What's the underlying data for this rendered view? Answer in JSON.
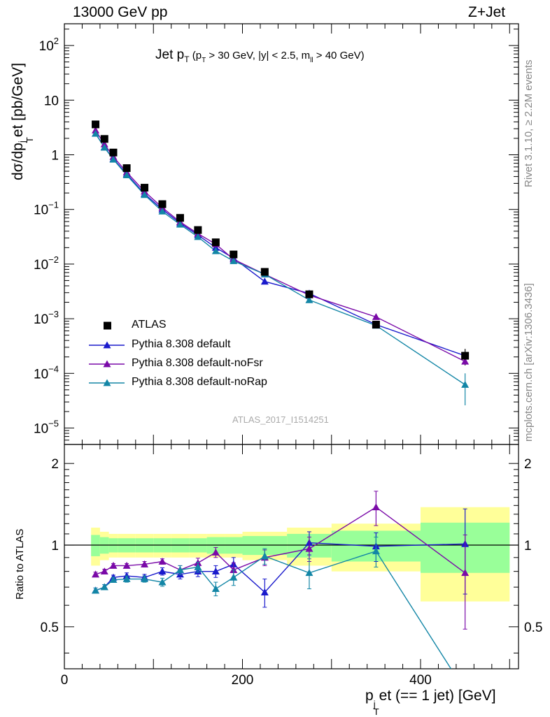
{
  "header": {
    "left": "13000 GeV pp",
    "right": "Z+Jet"
  },
  "side_labels": {
    "top": "Rivet 3.1.10, ≥ 2.2M events",
    "bottom": "mcplots.cern.ch [arXiv:1306.3436]"
  },
  "plot_title": {
    "main": "Jet p",
    "main_sub": "T",
    "cut_open": " (p",
    "cut_sub": "T",
    "cut_a": " > 30 GeV, |y| < 2.5, m",
    "cut_sub2": "ll",
    "cut_b": " > 40 GeV)"
  },
  "ylabel": {
    "a": "dσ/dp",
    "sub": "T",
    "sup": "j",
    "b": "et [pb/GeV]"
  },
  "ratio_ylabel": "Ratio to ATLAS",
  "xlabel": {
    "a": "p",
    "sub": "T",
    "sup": "j",
    "b": "et (== 1 jet) [GeV]"
  },
  "reference": "ATLAS_2017_I1514251",
  "legend": [
    {
      "label": "ATLAS",
      "marker": "square",
      "color": "#000000"
    },
    {
      "label": "Pythia 8.308 default",
      "marker": "triangle",
      "color": "#1a1acc"
    },
    {
      "label": "Pythia 8.308 default-noFsr",
      "marker": "triangle",
      "color": "#7a0aa8"
    },
    {
      "label": "Pythia 8.308 default-noRap",
      "marker": "triangle",
      "color": "#1386a6"
    }
  ],
  "chart_data": [
    {
      "type": "scatter",
      "panel": "main",
      "scale": "log",
      "xlim": [
        0,
        510
      ],
      "ylim": [
        5e-06,
        250
      ],
      "yticks": [
        "10^-5",
        "10^-4",
        "10^-3",
        "10^-2",
        "10^-1",
        "1",
        "10",
        "10^2"
      ],
      "xticks": [
        0,
        200,
        400
      ],
      "bins": [
        [
          30,
          40
        ],
        [
          40,
          50
        ],
        [
          50,
          60
        ],
        [
          60,
          80
        ],
        [
          80,
          100
        ],
        [
          100,
          120
        ],
        [
          120,
          140
        ],
        [
          140,
          160
        ],
        [
          160,
          180
        ],
        [
          180,
          200
        ],
        [
          200,
          250
        ],
        [
          250,
          300
        ],
        [
          300,
          400
        ],
        [
          400,
          500
        ]
      ],
      "x": [
        35,
        45,
        55,
        70,
        90,
        110,
        130,
        150,
        170,
        190,
        225,
        275,
        350,
        450
      ],
      "series": [
        {
          "name": "ATLAS",
          "color": "#000000",
          "values": [
            3.6,
            1.95,
            1.1,
            0.57,
            0.25,
            0.125,
            0.07,
            0.042,
            0.025,
            0.015,
            0.0072,
            0.0028,
            0.00078,
            0.00021
          ]
        },
        {
          "name": "Pythia 8.308 default",
          "color": "#1a1acc",
          "values": [
            2.45,
            1.38,
            0.84,
            0.445,
            0.193,
            0.1,
            0.056,
            0.034,
            0.02,
            0.0128,
            0.0048,
            0.0029,
            0.00078,
            0.00021
          ]
        },
        {
          "name": "Pythia 8.308 default-noFsr",
          "color": "#7a0aa8",
          "values": [
            2.8,
            1.56,
            0.92,
            0.48,
            0.213,
            0.108,
            0.059,
            0.036,
            0.0232,
            0.0122,
            0.0065,
            0.0027,
            0.00108,
            0.000165
          ]
        },
        {
          "name": "Pythia 8.308 default-noRap",
          "color": "#1386a6",
          "values": [
            2.44,
            1.36,
            0.82,
            0.425,
            0.185,
            0.092,
            0.053,
            0.0315,
            0.0173,
            0.0114,
            0.0065,
            0.0022,
            0.00075,
            6.2e-05
          ]
        }
      ]
    },
    {
      "type": "scatter",
      "panel": "ratio",
      "ylabel": "Ratio to ATLAS",
      "xlabel": "p_T^jet (== 1 jet) [GeV]",
      "xlim": [
        0,
        510
      ],
      "ylim": [
        0.35,
        2.35
      ],
      "yticks": [
        0.5,
        1,
        2
      ],
      "xticks": [
        0,
        200,
        400
      ],
      "x": [
        35,
        45,
        55,
        70,
        90,
        110,
        130,
        150,
        170,
        190,
        225,
        275,
        350,
        450
      ],
      "band_stat": [
        0.09,
        0.07,
        0.06,
        0.06,
        0.06,
        0.06,
        0.06,
        0.06,
        0.07,
        0.07,
        0.08,
        0.1,
        0.13,
        0.21
      ],
      "band_total": [
        0.16,
        0.12,
        0.1,
        0.1,
        0.1,
        0.1,
        0.1,
        0.1,
        0.1,
        0.1,
        0.12,
        0.16,
        0.2,
        0.38
      ],
      "series": [
        {
          "name": "Pythia 8.308 default",
          "color": "#1a1acc",
          "values": [
            0.68,
            0.7,
            0.76,
            0.77,
            0.76,
            0.8,
            0.78,
            0.8,
            0.8,
            0.85,
            0.67,
            1.02,
            0.99,
            1.01
          ],
          "errors": [
            0.015,
            0.015,
            0.015,
            0.02,
            0.02,
            0.025,
            0.03,
            0.035,
            0.04,
            0.05,
            0.08,
            0.1,
            0.12,
            0.35
          ]
        },
        {
          "name": "Pythia 8.308 default-noFsr",
          "color": "#7a0aa8",
          "values": [
            0.78,
            0.8,
            0.84,
            0.84,
            0.85,
            0.87,
            0.81,
            0.86,
            0.94,
            0.81,
            0.9,
            0.97,
            1.38,
            0.79
          ],
          "errors": [
            0.015,
            0.015,
            0.015,
            0.015,
            0.02,
            0.02,
            0.03,
            0.035,
            0.04,
            0.05,
            0.06,
            0.1,
            0.2,
            0.3
          ]
        },
        {
          "name": "Pythia 8.308 default-noRap",
          "color": "#1386a6",
          "values": [
            0.68,
            0.7,
            0.745,
            0.75,
            0.75,
            0.73,
            0.81,
            0.83,
            0.69,
            0.76,
            0.91,
            0.79,
            0.95,
            0.29
          ],
          "errors": [
            0.015,
            0.015,
            0.015,
            0.02,
            0.02,
            0.025,
            0.03,
            0.035,
            0.04,
            0.05,
            0.06,
            0.1,
            0.12,
            0.2
          ]
        }
      ]
    }
  ]
}
